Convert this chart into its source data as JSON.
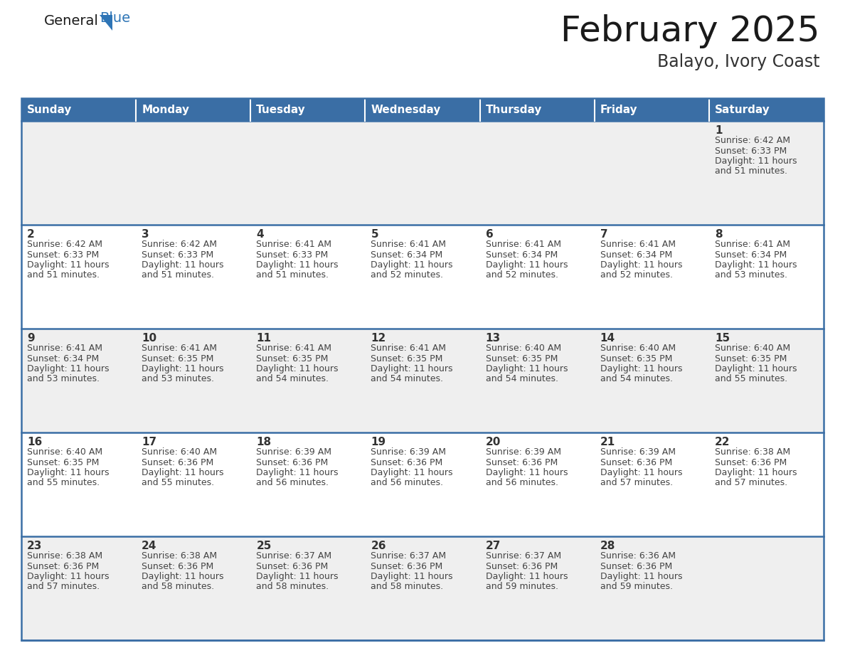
{
  "title": "February 2025",
  "subtitle": "Balayo, Ivory Coast",
  "days_of_week": [
    "Sunday",
    "Monday",
    "Tuesday",
    "Wednesday",
    "Thursday",
    "Friday",
    "Saturday"
  ],
  "header_bg": "#3A6EA5",
  "header_text": "#FFFFFF",
  "cell_bg_odd": "#EFEFEF",
  "cell_bg_even": "#FFFFFF",
  "border_color": "#3A6EA5",
  "day_number_color": "#333333",
  "text_color": "#444444",
  "calendar_data": [
    [
      null,
      null,
      null,
      null,
      null,
      null,
      {
        "day": 1,
        "sunrise": "6:42 AM",
        "sunset": "6:33 PM",
        "daylight_line1": "11 hours",
        "daylight_line2": "and 51 minutes."
      }
    ],
    [
      {
        "day": 2,
        "sunrise": "6:42 AM",
        "sunset": "6:33 PM",
        "daylight_line1": "11 hours",
        "daylight_line2": "and 51 minutes."
      },
      {
        "day": 3,
        "sunrise": "6:42 AM",
        "sunset": "6:33 PM",
        "daylight_line1": "11 hours",
        "daylight_line2": "and 51 minutes."
      },
      {
        "day": 4,
        "sunrise": "6:41 AM",
        "sunset": "6:33 PM",
        "daylight_line1": "11 hours",
        "daylight_line2": "and 51 minutes."
      },
      {
        "day": 5,
        "sunrise": "6:41 AM",
        "sunset": "6:34 PM",
        "daylight_line1": "11 hours",
        "daylight_line2": "and 52 minutes."
      },
      {
        "day": 6,
        "sunrise": "6:41 AM",
        "sunset": "6:34 PM",
        "daylight_line1": "11 hours",
        "daylight_line2": "and 52 minutes."
      },
      {
        "day": 7,
        "sunrise": "6:41 AM",
        "sunset": "6:34 PM",
        "daylight_line1": "11 hours",
        "daylight_line2": "and 52 minutes."
      },
      {
        "day": 8,
        "sunrise": "6:41 AM",
        "sunset": "6:34 PM",
        "daylight_line1": "11 hours",
        "daylight_line2": "and 53 minutes."
      }
    ],
    [
      {
        "day": 9,
        "sunrise": "6:41 AM",
        "sunset": "6:34 PM",
        "daylight_line1": "11 hours",
        "daylight_line2": "and 53 minutes."
      },
      {
        "day": 10,
        "sunrise": "6:41 AM",
        "sunset": "6:35 PM",
        "daylight_line1": "11 hours",
        "daylight_line2": "and 53 minutes."
      },
      {
        "day": 11,
        "sunrise": "6:41 AM",
        "sunset": "6:35 PM",
        "daylight_line1": "11 hours",
        "daylight_line2": "and 54 minutes."
      },
      {
        "day": 12,
        "sunrise": "6:41 AM",
        "sunset": "6:35 PM",
        "daylight_line1": "11 hours",
        "daylight_line2": "and 54 minutes."
      },
      {
        "day": 13,
        "sunrise": "6:40 AM",
        "sunset": "6:35 PM",
        "daylight_line1": "11 hours",
        "daylight_line2": "and 54 minutes."
      },
      {
        "day": 14,
        "sunrise": "6:40 AM",
        "sunset": "6:35 PM",
        "daylight_line1": "11 hours",
        "daylight_line2": "and 54 minutes."
      },
      {
        "day": 15,
        "sunrise": "6:40 AM",
        "sunset": "6:35 PM",
        "daylight_line1": "11 hours",
        "daylight_line2": "and 55 minutes."
      }
    ],
    [
      {
        "day": 16,
        "sunrise": "6:40 AM",
        "sunset": "6:35 PM",
        "daylight_line1": "11 hours",
        "daylight_line2": "and 55 minutes."
      },
      {
        "day": 17,
        "sunrise": "6:40 AM",
        "sunset": "6:36 PM",
        "daylight_line1": "11 hours",
        "daylight_line2": "and 55 minutes."
      },
      {
        "day": 18,
        "sunrise": "6:39 AM",
        "sunset": "6:36 PM",
        "daylight_line1": "11 hours",
        "daylight_line2": "and 56 minutes."
      },
      {
        "day": 19,
        "sunrise": "6:39 AM",
        "sunset": "6:36 PM",
        "daylight_line1": "11 hours",
        "daylight_line2": "and 56 minutes."
      },
      {
        "day": 20,
        "sunrise": "6:39 AM",
        "sunset": "6:36 PM",
        "daylight_line1": "11 hours",
        "daylight_line2": "and 56 minutes."
      },
      {
        "day": 21,
        "sunrise": "6:39 AM",
        "sunset": "6:36 PM",
        "daylight_line1": "11 hours",
        "daylight_line2": "and 57 minutes."
      },
      {
        "day": 22,
        "sunrise": "6:38 AM",
        "sunset": "6:36 PM",
        "daylight_line1": "11 hours",
        "daylight_line2": "and 57 minutes."
      }
    ],
    [
      {
        "day": 23,
        "sunrise": "6:38 AM",
        "sunset": "6:36 PM",
        "daylight_line1": "11 hours",
        "daylight_line2": "and 57 minutes."
      },
      {
        "day": 24,
        "sunrise": "6:38 AM",
        "sunset": "6:36 PM",
        "daylight_line1": "11 hours",
        "daylight_line2": "and 58 minutes."
      },
      {
        "day": 25,
        "sunrise": "6:37 AM",
        "sunset": "6:36 PM",
        "daylight_line1": "11 hours",
        "daylight_line2": "and 58 minutes."
      },
      {
        "day": 26,
        "sunrise": "6:37 AM",
        "sunset": "6:36 PM",
        "daylight_line1": "11 hours",
        "daylight_line2": "and 58 minutes."
      },
      {
        "day": 27,
        "sunrise": "6:37 AM",
        "sunset": "6:36 PM",
        "daylight_line1": "11 hours",
        "daylight_line2": "and 59 minutes."
      },
      {
        "day": 28,
        "sunrise": "6:36 AM",
        "sunset": "6:36 PM",
        "daylight_line1": "11 hours",
        "daylight_line2": "and 59 minutes."
      },
      null
    ]
  ]
}
